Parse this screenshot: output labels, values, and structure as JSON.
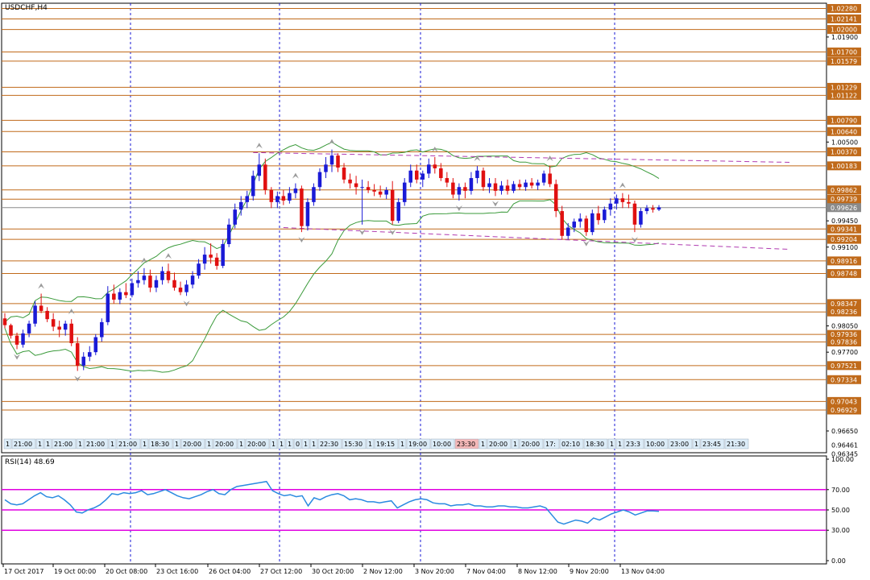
{
  "chart_title": "USDCHF,H4",
  "rsi_label": "RSI(14) 48.69",
  "colors": {
    "bull": "#1a1ad6",
    "bear": "#e01010",
    "level": "#c06a1a",
    "bollinger": "#3a9a3a",
    "channel": "#b03ab0",
    "rsi_line": "#2a8ae0",
    "rsi_band": "#e000e0",
    "separator": "#1a1ad6",
    "current": "#8a8a8a"
  },
  "price_axis": {
    "min": 0.9636,
    "max": 1.0235,
    "scale_ticks": [
      "1.01900",
      "1.00500",
      "0.99450",
      "0.99100",
      "0.98050",
      "0.97700",
      "0.96650"
    ],
    "tags": [
      {
        "label": "1.02280",
        "kind": "level"
      },
      {
        "label": "1.02141",
        "kind": "level"
      },
      {
        "label": "1.02000",
        "kind": "level"
      },
      {
        "label": "1.01700",
        "kind": "level"
      },
      {
        "label": "1.01579",
        "kind": "level"
      },
      {
        "label": "1.01229",
        "kind": "level"
      },
      {
        "label": "1.01122",
        "kind": "level"
      },
      {
        "label": "1.00790",
        "kind": "level"
      },
      {
        "label": "1.00640",
        "kind": "level"
      },
      {
        "label": "1.00370",
        "kind": "level"
      },
      {
        "label": "1.00183",
        "kind": "level"
      },
      {
        "label": "0.99862",
        "kind": "level"
      },
      {
        "label": "0.99739",
        "kind": "level"
      },
      {
        "label": "0.99626",
        "kind": "current"
      },
      {
        "label": "0.99341",
        "kind": "level"
      },
      {
        "label": "0.99204",
        "kind": "level"
      },
      {
        "label": "0.98916",
        "kind": "level"
      },
      {
        "label": "0.98748",
        "kind": "level"
      },
      {
        "label": "0.98347",
        "kind": "level"
      },
      {
        "label": "0.98236",
        "kind": "level"
      },
      {
        "label": "0.97936",
        "kind": "level"
      },
      {
        "label": "0.97836",
        "kind": "level"
      },
      {
        "label": "0.97521",
        "kind": "level"
      },
      {
        "label": "0.97334",
        "kind": "level"
      },
      {
        "label": "0.97043",
        "kind": "level"
      },
      {
        "label": "0.96929",
        "kind": "level"
      },
      {
        "label": "0.96461",
        "kind": "plain"
      },
      {
        "label": "0.96345",
        "kind": "plain"
      }
    ]
  },
  "rsi_axis": {
    "ticks": [
      {
        "value": 100,
        "label": "100.00"
      },
      {
        "value": 70,
        "label": "70.00"
      },
      {
        "value": 50,
        "label": "50.00"
      },
      {
        "value": 30,
        "label": "30.00"
      },
      {
        "value": 0,
        "label": "0.00"
      }
    ],
    "bands": [
      70,
      50,
      30
    ]
  },
  "time_axis": {
    "labels": [
      "17 Oct 2017",
      "19 Oct 00:00",
      "20 Oct 08:00",
      "23 Oct 16:00",
      "26 Oct 04:00",
      "27 Oct 12:00",
      "30 Oct 20:00",
      "2 Nov 12:00",
      "3 Nov 20:00",
      "7 Nov 04:00",
      "8 Nov 12:00",
      "9 Nov 20:00",
      "13 Nov 04:00"
    ]
  },
  "time_markers": [
    "1",
    "21:00",
    "1",
    "1",
    "21:00",
    "1",
    "21:00",
    "1",
    "21:00",
    "1",
    "18:30",
    "1",
    "20:00",
    "1",
    "20:00",
    "1",
    "20:00",
    "1",
    "1",
    "1",
    "0",
    "1",
    "1",
    "22:30",
    "15:30",
    "1",
    "19:15",
    "1",
    "19:00",
    "10:00",
    "23:30",
    "1",
    "20:00",
    "1",
    "20:00",
    "17:",
    "02:10",
    "18:30",
    "1",
    "1",
    "23:3",
    "10:00",
    "23:00",
    "1",
    "23:45",
    "21:30"
  ],
  "chart_data": {
    "type": "candlestick",
    "symbol": "USDCHF",
    "timeframe": "H4",
    "ylim": [
      0.9636,
      1.0235
    ],
    "candles": [
      [
        0.9815,
        0.9822,
        0.9802,
        0.9806
      ],
      [
        0.9806,
        0.9808,
        0.9788,
        0.9792
      ],
      [
        0.9792,
        0.9796,
        0.9774,
        0.978
      ],
      [
        0.978,
        0.98,
        0.9776,
        0.9795
      ],
      [
        0.9795,
        0.9812,
        0.979,
        0.9808
      ],
      [
        0.9808,
        0.9838,
        0.9804,
        0.9832
      ],
      [
        0.9832,
        0.9848,
        0.9822,
        0.9825
      ],
      [
        0.9825,
        0.983,
        0.981,
        0.9814
      ],
      [
        0.9814,
        0.9822,
        0.9798,
        0.9804
      ],
      [
        0.9804,
        0.9812,
        0.979,
        0.98
      ],
      [
        0.98,
        0.9812,
        0.9792,
        0.9808
      ],
      [
        0.9808,
        0.9814,
        0.9778,
        0.9782
      ],
      [
        0.9782,
        0.979,
        0.9745,
        0.9752
      ],
      [
        0.9752,
        0.977,
        0.9746,
        0.9764
      ],
      [
        0.9764,
        0.9778,
        0.9758,
        0.977
      ],
      [
        0.977,
        0.9794,
        0.9766,
        0.979
      ],
      [
        0.979,
        0.9815,
        0.9784,
        0.981
      ],
      [
        0.981,
        0.9858,
        0.9806,
        0.9848
      ],
      [
        0.9848,
        0.986,
        0.9835,
        0.984
      ],
      [
        0.984,
        0.9855,
        0.9834,
        0.985
      ],
      [
        0.985,
        0.9862,
        0.9842,
        0.9846
      ],
      [
        0.9846,
        0.9868,
        0.9843,
        0.9862
      ],
      [
        0.9862,
        0.9878,
        0.9856,
        0.9866
      ],
      [
        0.9866,
        0.9882,
        0.986,
        0.9872
      ],
      [
        0.9872,
        0.988,
        0.985,
        0.9856
      ],
      [
        0.9856,
        0.9872,
        0.985,
        0.9866
      ],
      [
        0.9866,
        0.9884,
        0.986,
        0.9878
      ],
      [
        0.9878,
        0.9888,
        0.9862,
        0.9866
      ],
      [
        0.9866,
        0.9876,
        0.9852,
        0.9856
      ],
      [
        0.9856,
        0.9864,
        0.9846,
        0.985
      ],
      [
        0.985,
        0.9866,
        0.9845,
        0.986
      ],
      [
        0.986,
        0.9878,
        0.9855,
        0.9872
      ],
      [
        0.9872,
        0.9894,
        0.9868,
        0.9888
      ],
      [
        0.9888,
        0.991,
        0.988,
        0.99
      ],
      [
        0.99,
        0.9915,
        0.9888,
        0.9896
      ],
      [
        0.9896,
        0.9902,
        0.988,
        0.9885
      ],
      [
        0.9885,
        0.992,
        0.9882,
        0.9914
      ],
      [
        0.9914,
        0.9948,
        0.991,
        0.994
      ],
      [
        0.994,
        0.9968,
        0.9935,
        0.996
      ],
      [
        0.996,
        0.9978,
        0.9952,
        0.997
      ],
      [
        0.997,
        0.9985,
        0.9962,
        0.9978
      ],
      [
        0.9978,
        1.0012,
        0.9972,
        1.0005
      ],
      [
        1.0005,
        1.0035,
        0.9998,
        1.002
      ],
      [
        1.002,
        1.0028,
        0.998,
        0.9986
      ],
      [
        0.9986,
        0.999,
        0.9962,
        0.997
      ],
      [
        0.997,
        0.9984,
        0.9962,
        0.9978
      ],
      [
        0.9978,
        0.9986,
        0.9966,
        0.9972
      ],
      [
        0.9972,
        0.999,
        0.9968,
        0.9982
      ],
      [
        0.9982,
        0.9995,
        0.9975,
        0.9988
      ],
      [
        0.9988,
        0.9992,
        0.993,
        0.9938
      ],
      [
        0.9938,
        0.9975,
        0.9932,
        0.997
      ],
      [
        0.997,
        0.9995,
        0.9965,
        0.999
      ],
      [
        0.999,
        1.0015,
        0.9985,
        1.001
      ],
      [
        1.001,
        1.003,
        1.0002,
        1.002
      ],
      [
        1.002,
        1.004,
        1.001,
        1.0032
      ],
      [
        1.0032,
        1.0035,
        1.001,
        1.0016
      ],
      [
        1.0016,
        1.0022,
        0.9995,
        1.0
      ],
      [
        1.0,
        1.0008,
        0.9988,
        0.9995
      ],
      [
        0.9995,
        1.0005,
        0.998,
        0.999
      ],
      [
        0.999,
        1.0,
        0.994,
        0.999
      ],
      [
        0.999,
        0.9998,
        0.9982,
        0.9986
      ],
      [
        0.9986,
        0.9994,
        0.9978,
        0.9984
      ],
      [
        0.9984,
        0.9992,
        0.9976,
        0.998
      ],
      [
        0.998,
        0.999,
        0.9974,
        0.9986
      ],
      [
        0.9986,
        0.9998,
        0.994,
        0.9945
      ],
      [
        0.9945,
        0.9975,
        0.9942,
        0.997
      ],
      [
        0.997,
        1.0002,
        0.9965,
        0.9996
      ],
      [
        0.9996,
        1.002,
        0.999,
        1.0012
      ],
      [
        1.0012,
        1.002,
        0.9995,
        1.0
      ],
      [
        1.0,
        1.0012,
        0.999,
        1.0008
      ],
      [
        1.0008,
        1.0028,
        1.0002,
        1.002
      ],
      [
        1.002,
        1.003,
        1.0008,
        1.0015
      ],
      [
        1.0015,
        1.0022,
        0.9998,
        1.0002
      ],
      [
        1.0002,
        1.001,
        0.999,
        0.9996
      ],
      [
        0.9996,
        1.0002,
        0.9975,
        0.998
      ],
      [
        0.998,
        0.9995,
        0.9972,
        0.999
      ],
      [
        0.999,
        0.9996,
        0.9975,
        0.9985
      ],
      [
        0.9985,
        1.001,
        0.998,
        1.0002
      ],
      [
        1.0002,
        1.0018,
        0.9995,
        1.0012
      ],
      [
        1.0012,
        1.0016,
        0.9985,
        0.999
      ],
      [
        0.999,
        1.0002,
        0.9982,
        0.9995
      ],
      [
        0.9995,
        1.0002,
        0.9978,
        0.9985
      ],
      [
        0.9985,
        0.9998,
        0.998,
        0.9992
      ],
      [
        0.9992,
        1.0,
        0.998,
        0.9985
      ],
      [
        0.9985,
        0.9998,
        0.9982,
        0.9994
      ],
      [
        0.9994,
        1.0,
        0.9986,
        0.999
      ],
      [
        0.999,
        1.0,
        0.9985,
        0.9996
      ],
      [
        0.9996,
        1.0002,
        0.9988,
        0.9992
      ],
      [
        0.9992,
        1.0,
        0.9986,
        0.9996
      ],
      [
        0.9996,
        1.0012,
        0.9992,
        1.0008
      ],
      [
        1.0008,
        1.0018,
        0.999,
        0.9994
      ],
      [
        0.9994,
        1.0,
        0.995,
        0.9958
      ],
      [
        0.9958,
        0.9965,
        0.992,
        0.9925
      ],
      [
        0.9925,
        0.9942,
        0.992,
        0.9936
      ],
      [
        0.9936,
        0.9948,
        0.993,
        0.9944
      ],
      [
        0.9944,
        0.9955,
        0.9936,
        0.9948
      ],
      [
        0.9948,
        0.9952,
        0.9925,
        0.993
      ],
      [
        0.993,
        0.996,
        0.9926,
        0.9955
      ],
      [
        0.9955,
        0.9965,
        0.994,
        0.9946
      ],
      [
        0.9946,
        0.9964,
        0.9942,
        0.996
      ],
      [
        0.996,
        0.9975,
        0.9952,
        0.9968
      ],
      [
        0.9968,
        0.998,
        0.996,
        0.9975
      ],
      [
        0.9975,
        0.9982,
        0.9962,
        0.997
      ],
      [
        0.997,
        0.998,
        0.9962,
        0.9968
      ],
      [
        0.9968,
        0.9972,
        0.993,
        0.994
      ],
      [
        0.994,
        0.9962,
        0.9936,
        0.9958
      ],
      [
        0.9958,
        0.9966,
        0.9954,
        0.9962
      ],
      [
        0.9962,
        0.9966,
        0.9956,
        0.996
      ],
      [
        0.996,
        0.9966,
        0.9958,
        0.9963
      ]
    ],
    "horizontal_levels": [
      1.0228,
      1.02141,
      1.02,
      1.017,
      1.01579,
      1.01229,
      1.01122,
      1.0079,
      1.0064,
      1.0037,
      1.00183,
      0.99862,
      0.99739,
      0.99341,
      0.99204,
      0.98916,
      0.98748,
      0.98347,
      0.98236,
      0.97936,
      0.97836,
      0.97521,
      0.97334,
      0.97043,
      0.96929
    ],
    "current_price": 0.99626,
    "rsi": {
      "period": 14,
      "last": 48.69,
      "ylim": [
        0,
        100
      ],
      "values": [
        60,
        56,
        55,
        56,
        60,
        64,
        67,
        63,
        62,
        64,
        60,
        55,
        48,
        47,
        50,
        52,
        55,
        60,
        66,
        65,
        67,
        66,
        67,
        69,
        65,
        66,
        68,
        70,
        67,
        64,
        62,
        61,
        63,
        65,
        68,
        70,
        66,
        65,
        70,
        73,
        74,
        75,
        76,
        77,
        78,
        69,
        66,
        64,
        65,
        63,
        64,
        54,
        62,
        60,
        63,
        65,
        66,
        64,
        60,
        61,
        60,
        58,
        58,
        57,
        58,
        59,
        52,
        55,
        58,
        60,
        61,
        60,
        57,
        56,
        56,
        54,
        55,
        55,
        56,
        54,
        54,
        53,
        53,
        54,
        54,
        53,
        53,
        52,
        52,
        53,
        54,
        52,
        45,
        38,
        36,
        38,
        40,
        39,
        37,
        42,
        40,
        43,
        46,
        48,
        50,
        48,
        45,
        47,
        49,
        49,
        48.69
      ]
    }
  }
}
